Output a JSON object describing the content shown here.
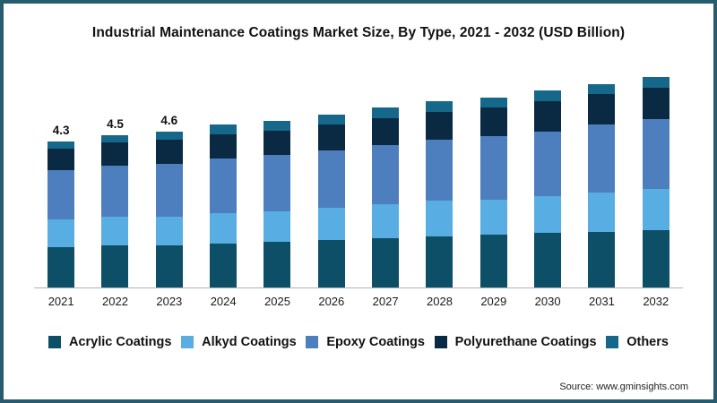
{
  "frame": {
    "border_color": "#275b6e"
  },
  "chart_data": {
    "type": "bar",
    "stacked": true,
    "title": "Industrial Maintenance Coatings Market Size, By Type, 2021 - 2032 (USD Billion)",
    "categories": [
      "2021",
      "2022",
      "2023",
      "2024",
      "2025",
      "2026",
      "2027",
      "2028",
      "2029",
      "2030",
      "2031",
      "2032"
    ],
    "series": [
      {
        "name": "Acrylic Coatings",
        "color": "#0d4f66",
        "values": [
          1.2,
          1.25,
          1.25,
          1.3,
          1.35,
          1.4,
          1.45,
          1.5,
          1.55,
          1.6,
          1.65,
          1.7
        ]
      },
      {
        "name": "Alkyd Coatings",
        "color": "#58ade3",
        "values": [
          0.8,
          0.85,
          0.85,
          0.9,
          0.9,
          0.95,
          1.0,
          1.05,
          1.05,
          1.1,
          1.15,
          1.2
        ]
      },
      {
        "name": "Epoxy Coatings",
        "color": "#4d7fbe",
        "values": [
          1.45,
          1.5,
          1.55,
          1.6,
          1.65,
          1.7,
          1.75,
          1.8,
          1.85,
          1.9,
          2.0,
          2.05
        ]
      },
      {
        "name": "Polyurethane Coatings",
        "color": "#0a2a43",
        "values": [
          0.65,
          0.68,
          0.7,
          0.72,
          0.72,
          0.75,
          0.8,
          0.83,
          0.85,
          0.88,
          0.9,
          0.93
        ]
      },
      {
        "name": "Others",
        "color": "#16688a",
        "values": [
          0.2,
          0.22,
          0.25,
          0.28,
          0.28,
          0.3,
          0.3,
          0.32,
          0.3,
          0.32,
          0.3,
          0.32
        ]
      }
    ],
    "totals": [
      4.3,
      4.5,
      4.6,
      4.8,
      4.9,
      5.1,
      5.3,
      5.5,
      5.6,
      5.8,
      6.0,
      6.2
    ],
    "bar_labels": [
      "4.3",
      "4.5",
      "4.6",
      "",
      "",
      "",
      "",
      "",
      "",
      "",
      "",
      ""
    ],
    "xlabel": "",
    "ylabel": "",
    "ylim": [
      0,
      6.6
    ],
    "grid": false,
    "legend_position": "bottom"
  },
  "source": {
    "label": "Source: www.gminsights.com"
  }
}
